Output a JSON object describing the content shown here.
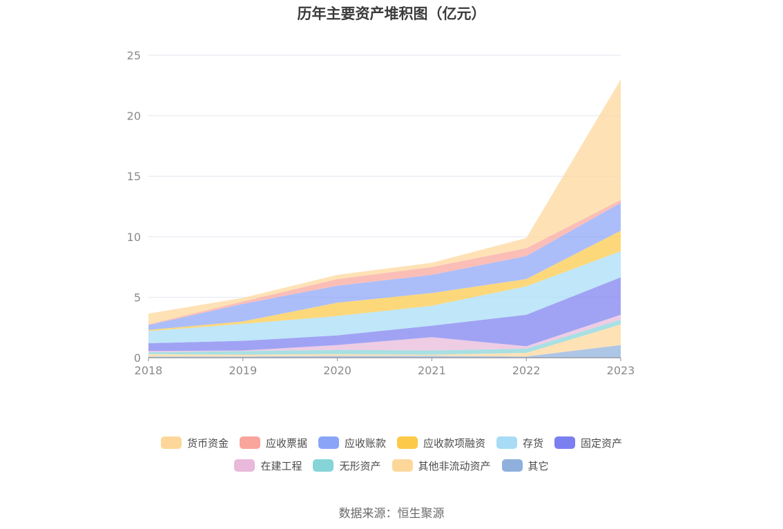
{
  "title": "历年主要资产堆积图（亿元）",
  "source": "数据来源：恒生聚源",
  "chart_data": {
    "type": "area",
    "stacked": true,
    "title": "历年主要资产堆积图（亿元）",
    "x": [
      "2018",
      "2019",
      "2020",
      "2021",
      "2022",
      "2023"
    ],
    "ylim": [
      0,
      25
    ],
    "yticks": [
      "0",
      "5",
      "10",
      "15",
      "20",
      "25"
    ],
    "grid": true,
    "legend_position": "bottom",
    "series": [
      {
        "name": "其它",
        "color": "#8fb0dc",
        "values": [
          0.1,
          0.1,
          0.15,
          0.15,
          0.1,
          1.05
        ]
      },
      {
        "name": "其他非流动资产",
        "color": "#fdd79a",
        "values": [
          0.2,
          0.15,
          0.15,
          0.1,
          0.3,
          1.7
        ]
      },
      {
        "name": "无形资产",
        "color": "#86d4d8",
        "values": [
          0.15,
          0.3,
          0.35,
          0.35,
          0.35,
          0.4
        ]
      },
      {
        "name": "在建工程",
        "color": "#e8b9da",
        "values": [
          0.1,
          0.05,
          0.4,
          1.1,
          0.2,
          0.4
        ]
      },
      {
        "name": "固定资产",
        "color": "#7b7ff0",
        "values": [
          0.65,
          0.8,
          0.8,
          0.95,
          2.6,
          3.1
        ]
      },
      {
        "name": "存货",
        "color": "#a8dcf6",
        "values": [
          1.0,
          1.4,
          1.6,
          1.65,
          2.35,
          2.15
        ]
      },
      {
        "name": "应收款项融资",
        "color": "#fcc948",
        "values": [
          0.1,
          0.2,
          1.1,
          1.05,
          0.6,
          1.7
        ]
      },
      {
        "name": "应收账款",
        "color": "#8aa5f8",
        "values": [
          0.4,
          1.45,
          1.4,
          1.5,
          1.9,
          2.3
        ]
      },
      {
        "name": "应收票据",
        "color": "#f9a59b",
        "values": [
          0.05,
          0.2,
          0.55,
          0.65,
          0.65,
          0.25
        ]
      },
      {
        "name": "货币资金",
        "color": "#fdd79a",
        "values": [
          0.9,
          0.3,
          0.35,
          0.35,
          0.85,
          9.95
        ]
      }
    ]
  },
  "legend": {
    "rows": [
      [
        {
          "name": "货币资金",
          "color": "#fdd79a"
        },
        {
          "name": "应收票据",
          "color": "#f9a59b"
        },
        {
          "name": "应收账款",
          "color": "#8aa5f8"
        },
        {
          "name": "应收款项融资",
          "color": "#fcc948"
        },
        {
          "name": "存货",
          "color": "#a8dcf6"
        },
        {
          "name": "固定资产",
          "color": "#7b7ff0"
        }
      ],
      [
        {
          "name": "在建工程",
          "color": "#e8b9da"
        },
        {
          "name": "无形资产",
          "color": "#86d4d8"
        },
        {
          "name": "其他非流动资产",
          "color": "#fdd79a"
        },
        {
          "name": "其它",
          "color": "#8fb0dc"
        }
      ]
    ]
  }
}
